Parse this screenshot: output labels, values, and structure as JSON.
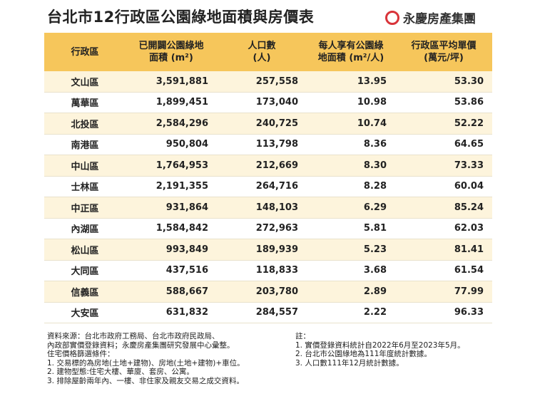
{
  "header": {
    "title": "台北市12行政區公園綠地面積與房價表",
    "logo": "永慶房產集團"
  },
  "table": {
    "columns": [
      [
        "行政區"
      ],
      [
        "已開闢公園綠地",
        "面積 (m²)"
      ],
      [
        "人口數",
        "(人)"
      ],
      [
        "每人享有公園綠",
        "地面積 (m²/人)"
      ],
      [
        "行政區平均單價",
        "(萬元/坪)"
      ]
    ],
    "rows": [
      [
        "文山區",
        "3,591,881",
        "257,558",
        "13.95",
        "53.30"
      ],
      [
        "萬華區",
        "1,899,451",
        "173,040",
        "10.98",
        "53.86"
      ],
      [
        "北投區",
        "2,584,296",
        "240,725",
        "10.74",
        "52.22"
      ],
      [
        "南港區",
        "950,804",
        "113,798",
        "8.36",
        "64.65"
      ],
      [
        "中山區",
        "1,764,953",
        "212,669",
        "8.30",
        "73.33"
      ],
      [
        "士林區",
        "2,191,355",
        "264,716",
        "8.28",
        "60.04"
      ],
      [
        "中正區",
        "931,864",
        "148,103",
        "6.29",
        "85.24"
      ],
      [
        "內湖區",
        "1,584,842",
        "272,963",
        "5.81",
        "62.03"
      ],
      [
        "松山區",
        "993,849",
        "189,939",
        "5.23",
        "81.41"
      ],
      [
        "大同區",
        "437,516",
        "118,833",
        "3.68",
        "61.54"
      ],
      [
        "信義區",
        "588,667",
        "203,780",
        "2.89",
        "77.99"
      ],
      [
        "大安區",
        "631,832",
        "284,557",
        "2.22",
        "96.33"
      ]
    ]
  },
  "notes": {
    "left": [
      "資料來源：台北市政府工務局、台北市政府民政局、",
      "內政部實價登錄資料；永慶房產集團研究發展中心彙整。",
      "住宅價格篩選條件：",
      "1. 交易標的為房地(土地+建物)、房地(土地+建物)+車位。",
      "2. 建物型態:住宅大樓、華廈、套房、公寓。",
      "3. 排除屋齡兩年內、一樓、非住家及親友交易之成交資料。"
    ],
    "right": [
      "註：",
      "1. 實價登錄資料統計自2022年6月至2023年5月。",
      "2. 台北市公園綠地為111年度統計數據。",
      "3. 人口數111年12月統計數據。"
    ]
  }
}
